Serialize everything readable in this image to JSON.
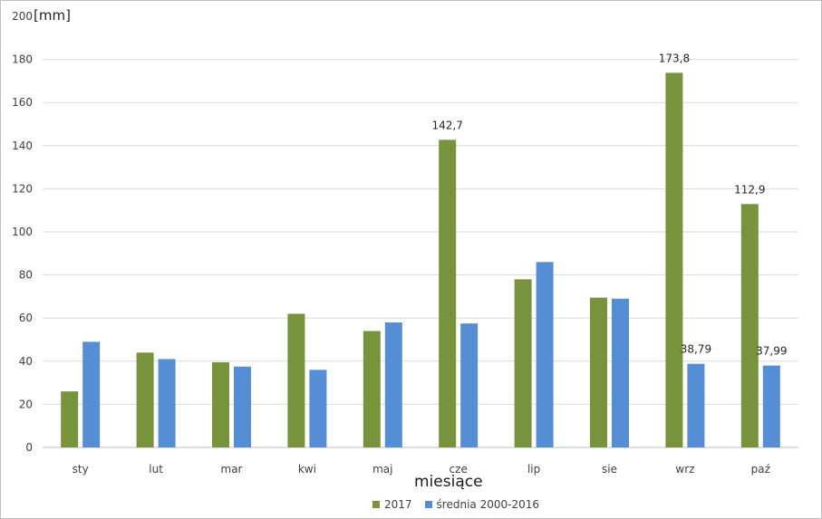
{
  "chart_data": {
    "type": "bar",
    "unit_label": "[mm]",
    "xlabel": "miesiące",
    "ylabel": "",
    "title": "",
    "ylim": [
      0,
      200
    ],
    "yticks": [
      0,
      20,
      40,
      60,
      80,
      100,
      120,
      140,
      160,
      180,
      200
    ],
    "grid": true,
    "legend_position": "bottom",
    "categories": [
      "sty",
      "lut",
      "mar",
      "kwi",
      "maj",
      "cze",
      "lip",
      "sie",
      "wrz",
      "paź"
    ],
    "series": [
      {
        "name": "2017",
        "color": "#77933c",
        "values": [
          26,
          44,
          39.5,
          62,
          54,
          142.7,
          78,
          69.5,
          173.8,
          112.9
        ],
        "data_labels": [
          "",
          "",
          "",
          "",
          "",
          "142,7",
          "",
          "",
          "173,8",
          "112,9"
        ]
      },
      {
        "name": "średnia 2000-2016",
        "color": "#558ed5",
        "values": [
          49,
          41,
          37.5,
          36,
          58,
          57.5,
          86,
          69,
          38.79,
          37.99
        ],
        "data_labels": [
          "",
          "",
          "",
          "",
          "",
          "",
          "",
          "",
          "38,79",
          "37,99"
        ]
      }
    ]
  }
}
